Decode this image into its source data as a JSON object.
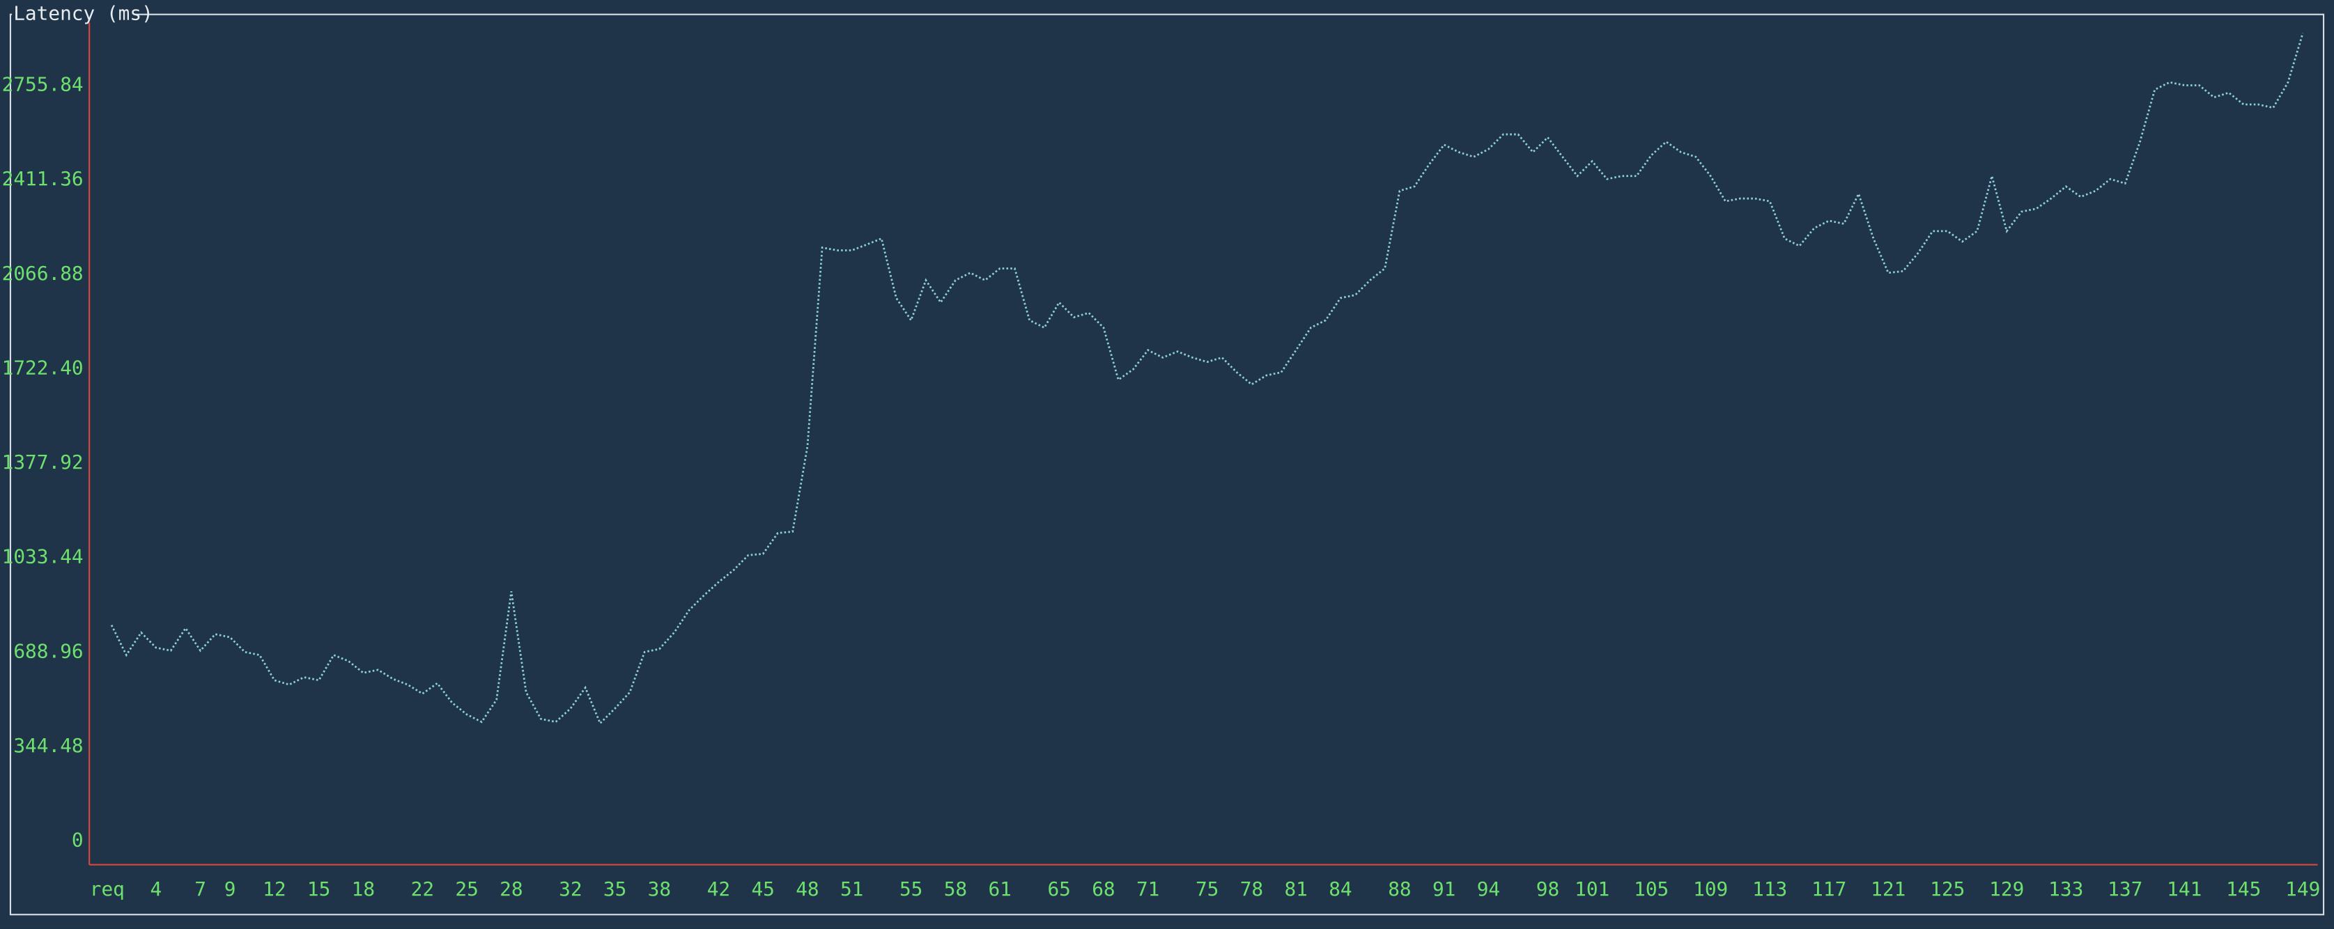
{
  "chart_data": {
    "type": "line",
    "title": "Latency (ms)",
    "x_label": "req",
    "x": [
      1,
      2,
      3,
      4,
      5,
      6,
      7,
      8,
      9,
      10,
      11,
      12,
      13,
      14,
      15,
      16,
      17,
      18,
      19,
      20,
      21,
      22,
      23,
      24,
      25,
      26,
      27,
      28,
      29,
      30,
      31,
      32,
      33,
      34,
      35,
      36,
      37,
      38,
      39,
      40,
      41,
      42,
      43,
      44,
      45,
      46,
      47,
      48,
      49,
      50,
      51,
      52,
      53,
      54,
      55,
      56,
      57,
      58,
      59,
      60,
      61,
      62,
      63,
      64,
      65,
      66,
      67,
      68,
      69,
      70,
      71,
      72,
      73,
      74,
      75,
      76,
      77,
      78,
      79,
      80,
      81,
      82,
      83,
      84,
      85,
      86,
      87,
      88,
      89,
      90,
      91,
      92,
      93,
      94,
      95,
      96,
      97,
      98,
      99,
      100,
      101,
      102,
      103,
      104,
      105,
      106,
      107,
      108,
      109,
      110,
      111,
      112,
      113,
      114,
      115,
      116,
      117,
      118,
      119,
      120,
      121,
      122,
      123,
      124,
      125,
      126,
      127,
      128,
      129,
      130,
      131,
      132,
      133,
      134,
      135,
      136,
      137,
      138,
      139,
      140,
      141,
      142,
      143,
      144,
      145,
      146,
      147,
      148,
      149
    ],
    "series": [
      {
        "name": "Latency",
        "color": "#8ecfdc",
        "values": [
          787,
          678,
          760,
          705,
          694,
          776,
          694,
          754,
          743,
          689,
          678,
          586,
          570,
          597,
          586,
          678,
          656,
          613,
          624,
          591,
          570,
          537,
          575,
          504,
          461,
          434,
          515,
          910,
          542,
          445,
          434,
          483,
          559,
          429,
          483,
          542,
          689,
          700,
          760,
          841,
          895,
          944,
          987,
          1042,
          1047,
          1123,
          1128,
          1438,
          2164,
          2154,
          2154,
          2175,
          2197,
          1980,
          1899,
          2045,
          1964,
          2045,
          2072,
          2045,
          2088,
          2088,
          1899,
          1872,
          1964,
          1910,
          1926,
          1872,
          1682,
          1720,
          1790,
          1763,
          1785,
          1763,
          1747,
          1763,
          1709,
          1665,
          1698,
          1709,
          1790,
          1872,
          1899,
          1980,
          1991,
          2045,
          2088,
          2371,
          2387,
          2468,
          2539,
          2512,
          2495,
          2523,
          2577,
          2577,
          2512,
          2566,
          2495,
          2425,
          2479,
          2414,
          2425,
          2425,
          2501,
          2550,
          2512,
          2495,
          2425,
          2333,
          2343,
          2343,
          2333,
          2197,
          2170,
          2235,
          2262,
          2251,
          2360,
          2197,
          2072,
          2078,
          2143,
          2224,
          2224,
          2186,
          2224,
          2425,
          2224,
          2295,
          2306,
          2343,
          2387,
          2349,
          2371,
          2414,
          2398,
          2550,
          2740,
          2767,
          2756,
          2756,
          2712,
          2729,
          2686,
          2686,
          2674,
          2767,
          2946
        ]
      }
    ],
    "xlim": [
      0,
      150
    ],
    "xticks": [
      4,
      7,
      9,
      12,
      15,
      18,
      22,
      25,
      28,
      32,
      35,
      38,
      42,
      45,
      48,
      51,
      55,
      58,
      61,
      65,
      68,
      71,
      75,
      78,
      81,
      84,
      88,
      91,
      94,
      98,
      101,
      105,
      109,
      113,
      117,
      121,
      125,
      129,
      133,
      137,
      141,
      145,
      149
    ],
    "ylim": [
      0,
      2990
    ],
    "yticks": [
      0,
      344.48,
      688.96,
      1033.44,
      1377.92,
      {
        "value": 1722.4,
        "label": "1722.40"
      },
      2066.88,
      2411.36,
      2755.84
    ],
    "grid": false
  }
}
